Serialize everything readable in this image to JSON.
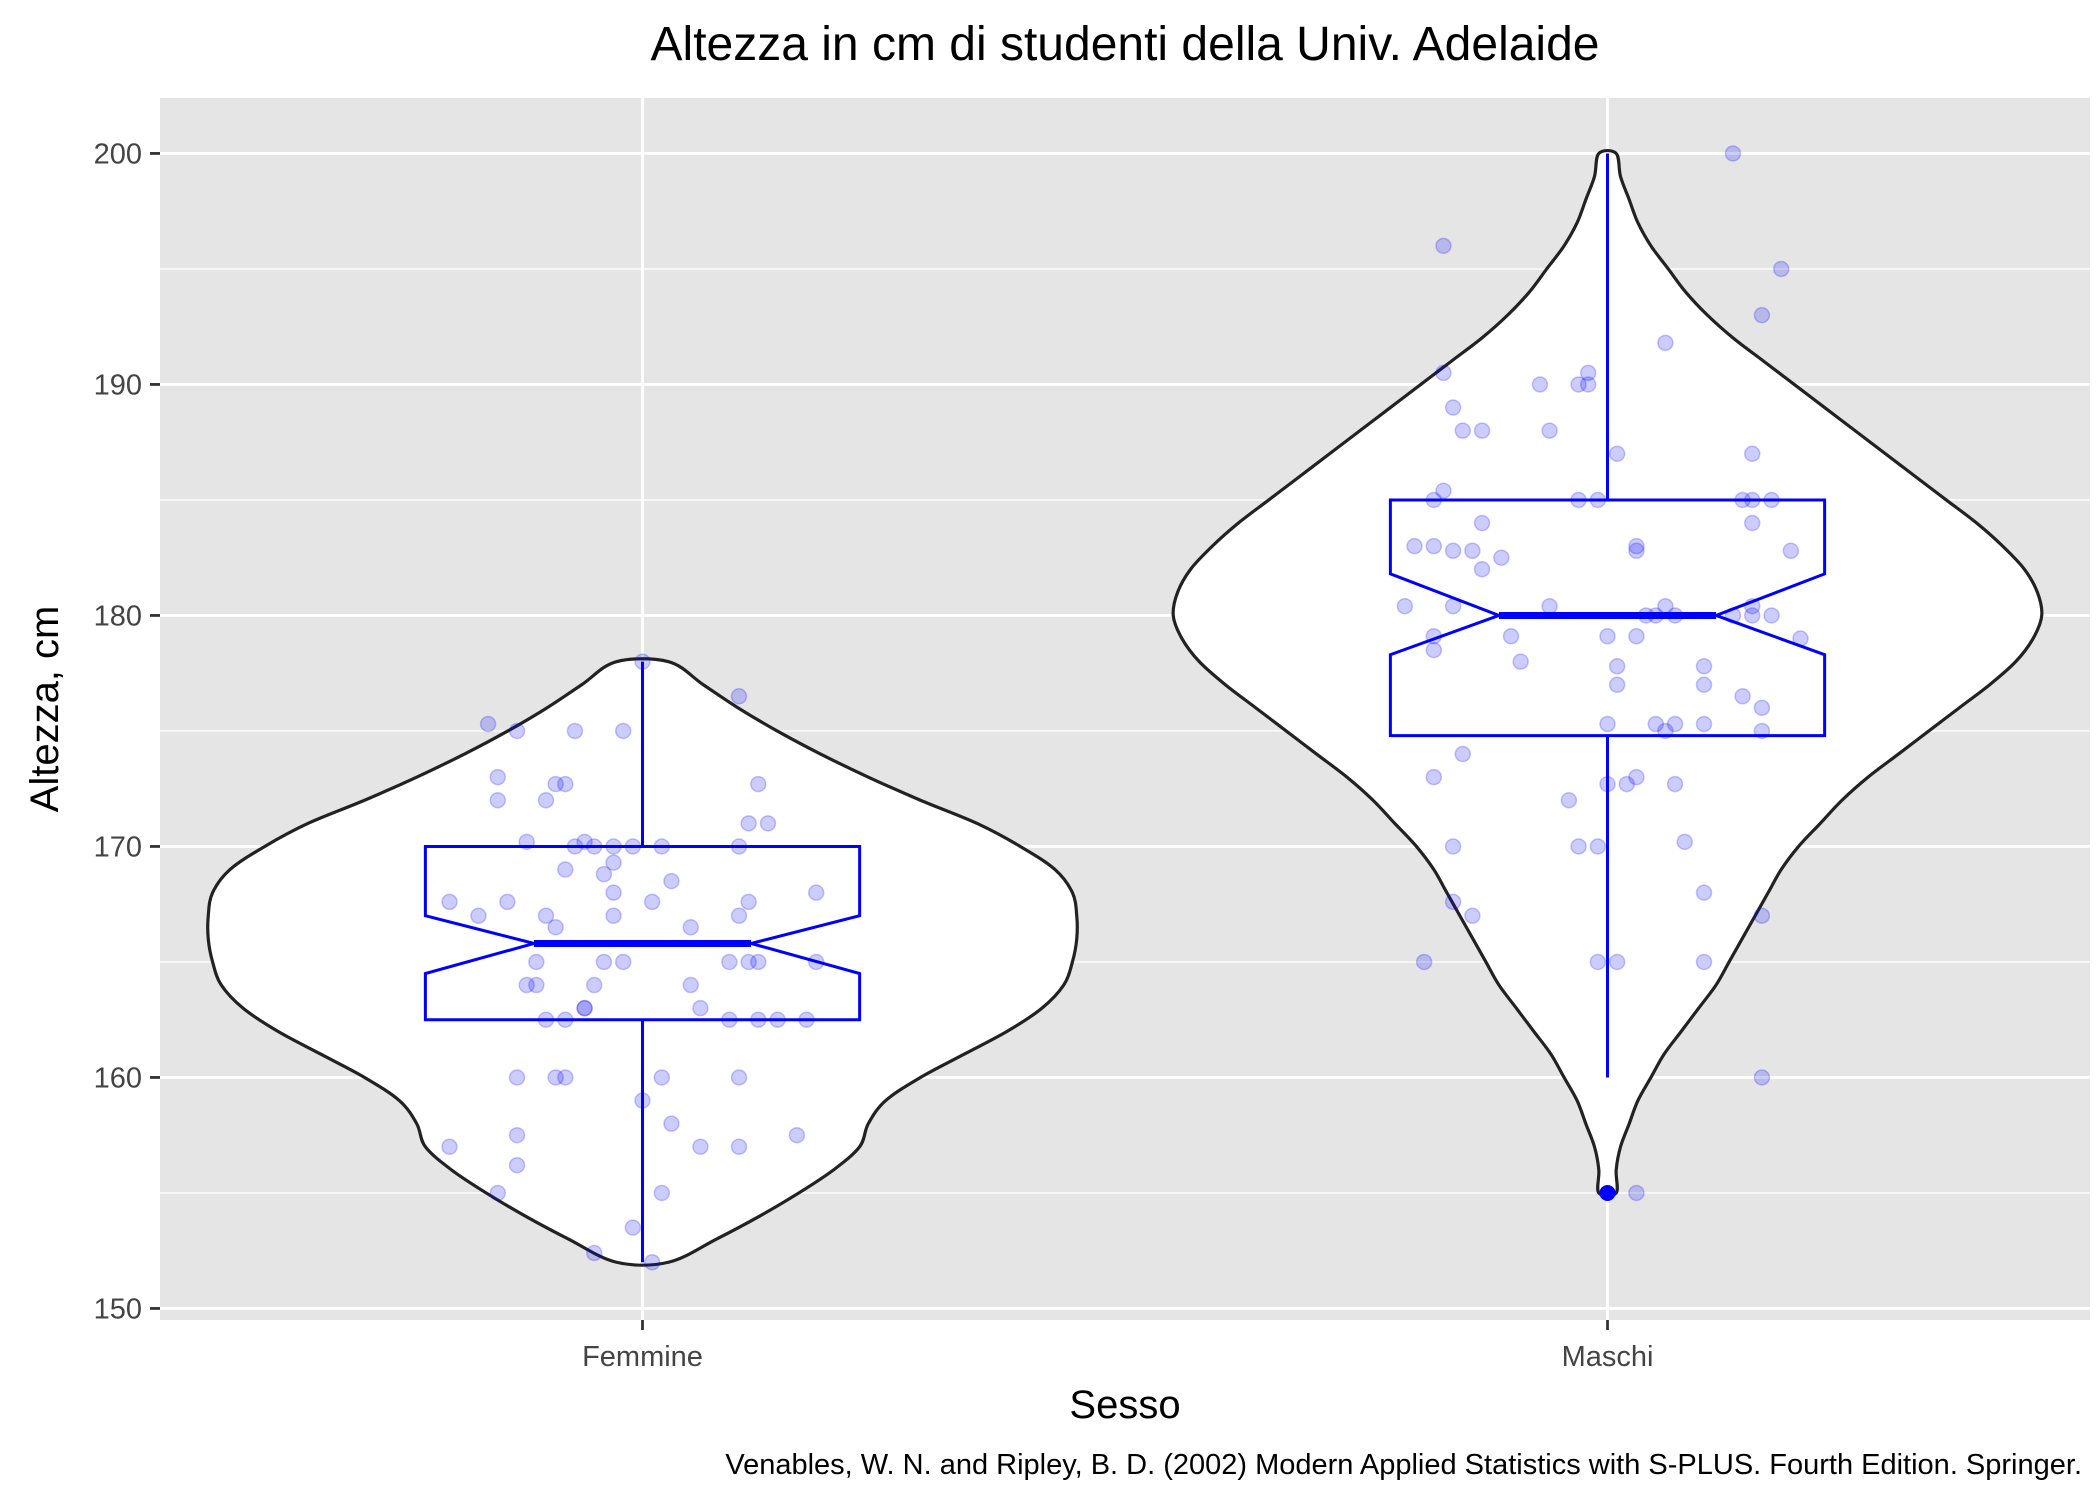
{
  "chart_data": {
    "type": "violin",
    "title": "Altezza in cm di studenti della Univ. Adelaide",
    "xlabel": "Sesso",
    "ylabel": "Altezza, cm",
    "caption": "Venables, W. N. and Ripley, B. D. (2002) Modern Applied Statistics with S-PLUS. Fourth Edition. Springer.",
    "categories": [
      "Femmine",
      "Maschi"
    ],
    "ylim": [
      149.5,
      202.4
    ],
    "yticks": [
      150,
      160,
      170,
      180,
      190,
      200
    ],
    "grid": true,
    "colors": {
      "panel": "#e5e5e5",
      "grid": "#ffffff",
      "violin_outline": "#222222",
      "violin_fill": "#ffffff",
      "box": "#0000ff",
      "points": "#0000ff",
      "text": "#000000",
      "tick_text": "#444444"
    },
    "groups": [
      {
        "name": "Femmine",
        "range": [
          152,
          178
        ],
        "density_profile": [
          [
            152.0,
            0.06
          ],
          [
            153.0,
            0.17
          ],
          [
            154.0,
            0.27
          ],
          [
            155.0,
            0.36
          ],
          [
            156.0,
            0.44
          ],
          [
            157.0,
            0.5
          ],
          [
            158.0,
            0.52
          ],
          [
            159.0,
            0.56
          ],
          [
            160.0,
            0.64
          ],
          [
            161.0,
            0.74
          ],
          [
            162.0,
            0.84
          ],
          [
            163.0,
            0.92
          ],
          [
            164.0,
            0.97
          ],
          [
            165.0,
            0.99
          ],
          [
            166.0,
            1.0
          ],
          [
            167.0,
            1.0
          ],
          [
            168.0,
            0.99
          ],
          [
            169.0,
            0.95
          ],
          [
            170.0,
            0.87
          ],
          [
            171.0,
            0.77
          ],
          [
            172.0,
            0.64
          ],
          [
            173.0,
            0.52
          ],
          [
            174.0,
            0.41
          ],
          [
            175.0,
            0.31
          ],
          [
            176.0,
            0.22
          ],
          [
            177.0,
            0.14
          ],
          [
            178.0,
            0.06
          ]
        ],
        "box": {
          "lower_whisker": 152,
          "q1": 162.5,
          "median": 165.8,
          "q3": 170,
          "upper_whisker": 178,
          "notch_low": 164.5,
          "notch_high": 167
        },
        "outliers": [],
        "points": [
          [
            -0.16,
            175.3
          ],
          [
            -0.13,
            175.0
          ],
          [
            -0.15,
            173.0
          ],
          [
            -0.15,
            172.0
          ],
          [
            -0.12,
            170.2
          ],
          [
            -0.2,
            167.6
          ],
          [
            -0.17,
            167.0
          ],
          [
            -0.14,
            167.6
          ],
          [
            -0.09,
            172.7
          ],
          [
            -0.1,
            172.0
          ],
          [
            -0.08,
            172.7
          ],
          [
            -0.07,
            175.0
          ],
          [
            -0.02,
            175.0
          ],
          [
            0.0,
            178.0
          ],
          [
            0.1,
            176.5
          ],
          [
            0.12,
            172.7
          ],
          [
            0.11,
            171.0
          ],
          [
            0.13,
            171.0
          ],
          [
            0.1,
            170.0
          ],
          [
            -0.1,
            167.0
          ],
          [
            -0.09,
            166.5
          ],
          [
            -0.11,
            165.0
          ],
          [
            -0.12,
            164.0
          ],
          [
            -0.1,
            162.5
          ],
          [
            -0.08,
            162.5
          ],
          [
            -0.06,
            163.0
          ],
          [
            -0.05,
            164.0
          ],
          [
            -0.07,
            170.0
          ],
          [
            -0.08,
            169.0
          ],
          [
            -0.06,
            170.2
          ],
          [
            -0.05,
            170.0
          ],
          [
            -0.04,
            168.8
          ],
          [
            -0.03,
            170.0
          ],
          [
            -0.03,
            169.3
          ],
          [
            -0.01,
            170.0
          ],
          [
            -0.03,
            168.0
          ],
          [
            -0.04,
            165.0
          ],
          [
            -0.02,
            165.0
          ],
          [
            -0.03,
            167.0
          ],
          [
            0.01,
            167.6
          ],
          [
            0.02,
            170.0
          ],
          [
            0.03,
            168.5
          ],
          [
            0.05,
            166.5
          ],
          [
            0.06,
            163.0
          ],
          [
            0.05,
            164.0
          ],
          [
            0.09,
            165.0
          ],
          [
            0.1,
            167.0
          ],
          [
            0.11,
            167.6
          ],
          [
            0.12,
            165.0
          ],
          [
            0.12,
            162.5
          ],
          [
            0.14,
            162.5
          ],
          [
            0.18,
            168.0
          ],
          [
            0.18,
            165.0
          ],
          [
            0.17,
            162.5
          ],
          [
            0.09,
            162.5
          ],
          [
            -0.13,
            157.5
          ],
          [
            -0.13,
            156.2
          ],
          [
            -0.15,
            155.0
          ],
          [
            -0.2,
            157.0
          ],
          [
            -0.13,
            160.0
          ],
          [
            -0.09,
            160.0
          ],
          [
            -0.08,
            160.0
          ],
          [
            -0.11,
            164.0
          ],
          [
            0.02,
            160.0
          ],
          [
            0.02,
            155.0
          ],
          [
            0.03,
            158.0
          ],
          [
            0.06,
            157.0
          ],
          [
            0.1,
            160.0
          ],
          [
            0.1,
            157.0
          ],
          [
            0.16,
            157.5
          ],
          [
            0.0,
            159.0
          ],
          [
            -0.01,
            153.5
          ],
          [
            0.01,
            152.0
          ],
          [
            -0.05,
            152.4
          ],
          [
            -0.06,
            163.0
          ],
          [
            0.11,
            165.0
          ]
        ]
      },
      {
        "name": "Maschi",
        "range": [
          155,
          200
        ],
        "density_profile": [
          [
            155.0,
            0.02
          ],
          [
            156.0,
            0.02
          ],
          [
            157.0,
            0.03
          ],
          [
            158.0,
            0.05
          ],
          [
            159.0,
            0.07
          ],
          [
            160.0,
            0.1
          ],
          [
            161.0,
            0.13
          ],
          [
            162.0,
            0.17
          ],
          [
            163.0,
            0.21
          ],
          [
            164.0,
            0.25
          ],
          [
            165.0,
            0.28
          ],
          [
            166.0,
            0.31
          ],
          [
            167.0,
            0.34
          ],
          [
            168.0,
            0.37
          ],
          [
            169.0,
            0.4
          ],
          [
            170.0,
            0.44
          ],
          [
            171.0,
            0.49
          ],
          [
            172.0,
            0.54
          ],
          [
            173.0,
            0.6
          ],
          [
            174.0,
            0.67
          ],
          [
            175.0,
            0.74
          ],
          [
            176.0,
            0.81
          ],
          [
            177.0,
            0.88
          ],
          [
            178.0,
            0.94
          ],
          [
            179.0,
            0.98
          ],
          [
            180.0,
            1.0
          ],
          [
            181.0,
            0.99
          ],
          [
            182.0,
            0.96
          ],
          [
            183.0,
            0.91
          ],
          [
            184.0,
            0.85
          ],
          [
            185.0,
            0.78
          ],
          [
            186.0,
            0.71
          ],
          [
            187.0,
            0.64
          ],
          [
            188.0,
            0.57
          ],
          [
            189.0,
            0.5
          ],
          [
            190.0,
            0.43
          ],
          [
            191.0,
            0.36
          ],
          [
            192.0,
            0.29
          ],
          [
            193.0,
            0.23
          ],
          [
            194.0,
            0.18
          ],
          [
            195.0,
            0.14
          ],
          [
            196.0,
            0.1
          ],
          [
            197.0,
            0.07
          ],
          [
            198.0,
            0.05
          ],
          [
            199.0,
            0.03
          ],
          [
            200.0,
            0.02
          ]
        ],
        "box": {
          "lower_whisker": 160,
          "q1": 174.8,
          "median": 180,
          "q3": 185,
          "upper_whisker": 200,
          "notch_low": 178.3,
          "notch_high": 181.8
        },
        "outliers": [
          155
        ],
        "points": [
          [
            -0.17,
            196.0
          ],
          [
            -0.17,
            190.5
          ],
          [
            -0.16,
            189.0
          ],
          [
            -0.15,
            188.0
          ],
          [
            -0.13,
            188.0
          ],
          [
            -0.07,
            190.0
          ],
          [
            -0.06,
            188.0
          ],
          [
            -0.03,
            185.0
          ],
          [
            -0.01,
            185.0
          ],
          [
            -0.18,
            185.0
          ],
          [
            -0.17,
            185.4
          ],
          [
            -0.18,
            183.0
          ],
          [
            -0.16,
            182.8
          ],
          [
            -0.13,
            184.0
          ],
          [
            -0.14,
            182.8
          ],
          [
            -0.11,
            182.5
          ],
          [
            -0.13,
            182.0
          ],
          [
            -0.2,
            183.0
          ],
          [
            -0.21,
            180.4
          ],
          [
            -0.16,
            180.4
          ],
          [
            -0.18,
            179.1
          ],
          [
            -0.18,
            178.5
          ],
          [
            -0.1,
            179.1
          ],
          [
            -0.09,
            178.0
          ],
          [
            -0.06,
            180.4
          ],
          [
            0.01,
            187.0
          ],
          [
            0.03,
            183.0
          ],
          [
            0.03,
            182.8
          ],
          [
            0.03,
            179.1
          ],
          [
            0.0,
            179.1
          ],
          [
            -0.02,
            190.5
          ],
          [
            -0.03,
            190.0
          ],
          [
            -0.02,
            190.0
          ],
          [
            0.04,
            180.0
          ],
          [
            0.05,
            180.0
          ],
          [
            0.06,
            180.4
          ],
          [
            0.07,
            180.0
          ],
          [
            0.06,
            175.0
          ],
          [
            0.07,
            175.3
          ],
          [
            0.1,
            175.3
          ],
          [
            0.1,
            177.8
          ],
          [
            0.1,
            177.0
          ],
          [
            0.06,
            191.8
          ],
          [
            0.13,
            200.0
          ],
          [
            0.18,
            195.0
          ],
          [
            0.16,
            193.0
          ],
          [
            0.15,
            187.0
          ],
          [
            0.15,
            185.0
          ],
          [
            0.17,
            185.0
          ],
          [
            0.14,
            185.0
          ],
          [
            0.15,
            184.0
          ],
          [
            0.19,
            182.8
          ],
          [
            0.13,
            180.0
          ],
          [
            0.15,
            180.4
          ],
          [
            0.17,
            180.0
          ],
          [
            0.15,
            180.0
          ],
          [
            0.2,
            179.0
          ],
          [
            0.14,
            176.5
          ],
          [
            0.16,
            176.0
          ],
          [
            0.16,
            175.0
          ],
          [
            0.01,
            177.0
          ],
          [
            0.01,
            177.8
          ],
          [
            0.0,
            175.3
          ],
          [
            0.05,
            175.3
          ],
          [
            -0.18,
            173.0
          ],
          [
            -0.16,
            170.0
          ],
          [
            -0.16,
            167.6
          ],
          [
            -0.14,
            167.0
          ],
          [
            -0.19,
            165.0
          ],
          [
            -0.15,
            174.0
          ],
          [
            -0.04,
            172.0
          ],
          [
            -0.03,
            170.0
          ],
          [
            -0.01,
            170.0
          ],
          [
            0.0,
            172.7
          ],
          [
            0.02,
            172.7
          ],
          [
            0.03,
            173.0
          ],
          [
            0.07,
            172.7
          ],
          [
            0.08,
            170.2
          ],
          [
            0.1,
            168.0
          ],
          [
            0.1,
            165.0
          ],
          [
            -0.01,
            165.0
          ],
          [
            0.01,
            165.0
          ],
          [
            0.16,
            167.0
          ],
          [
            0.16,
            160.0
          ],
          [
            0.03,
            155.0
          ]
        ]
      }
    ]
  }
}
